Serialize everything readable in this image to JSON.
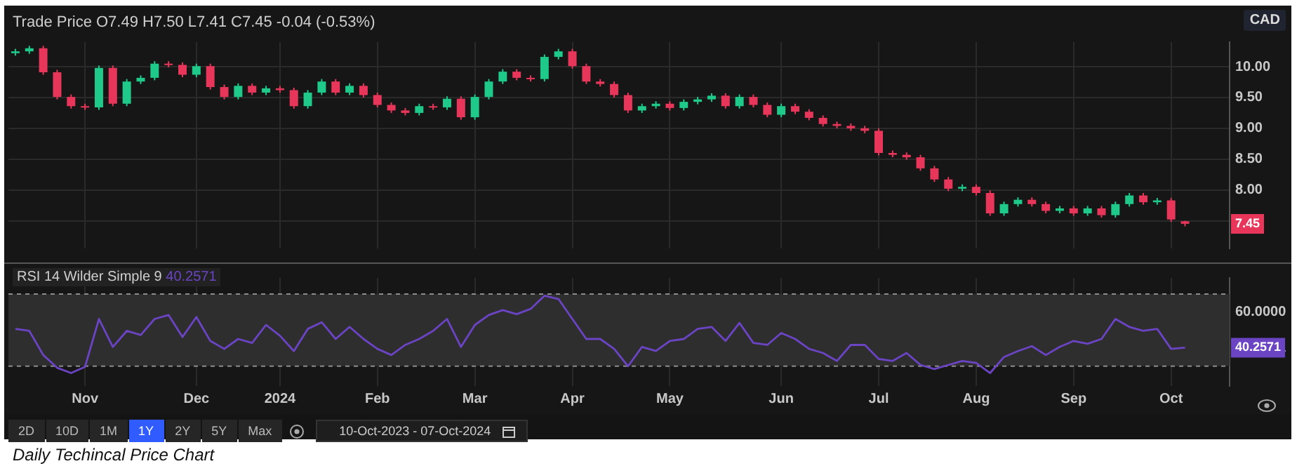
{
  "chart_data": [
    {
      "type": "candlestick",
      "title": "Trade Price  O7.49 H7.50 L7.41 C7.45 -0.04 (-0.53%)",
      "ylabel": "CAD",
      "categories": [
        null,
        null,
        null,
        null,
        null,
        null,
        null,
        null,
        null,
        null,
        null,
        null,
        null,
        null,
        null,
        null,
        null,
        null,
        null,
        null,
        null,
        null,
        null,
        null,
        null,
        null,
        null,
        null,
        null,
        null,
        null,
        null,
        null,
        null,
        null,
        null,
        null,
        null,
        null,
        null,
        null,
        null,
        null,
        null,
        null,
        null,
        null,
        null,
        null,
        null,
        null,
        null,
        null,
        null,
        null,
        null,
        null,
        null,
        null,
        null,
        null,
        null,
        null,
        null,
        null,
        null,
        null,
        null,
        null,
        null,
        null,
        null,
        null,
        null,
        null,
        null,
        null,
        null,
        null,
        null,
        null,
        null,
        null,
        null,
        null
      ],
      "ohlc": [
        [
          10.22,
          10.29,
          10.18,
          10.25
        ],
        [
          10.25,
          10.34,
          10.21,
          10.3
        ],
        [
          10.3,
          10.34,
          9.87,
          9.91
        ],
        [
          9.91,
          9.95,
          9.47,
          9.51
        ],
        [
          9.51,
          9.55,
          9.32,
          9.36
        ],
        [
          9.36,
          9.4,
          9.3,
          9.34
        ],
        [
          9.34,
          10.02,
          9.3,
          9.98
        ],
        [
          9.98,
          10.02,
          9.36,
          9.4
        ],
        [
          9.4,
          9.8,
          9.36,
          9.76
        ],
        [
          9.76,
          9.86,
          9.72,
          9.82
        ],
        [
          9.82,
          10.09,
          9.78,
          10.05
        ],
        [
          10.05,
          10.09,
          9.99,
          10.03
        ],
        [
          10.03,
          10.07,
          9.83,
          9.87
        ],
        [
          9.87,
          10.05,
          9.83,
          10.01
        ],
        [
          10.01,
          10.05,
          9.63,
          9.67
        ],
        [
          9.67,
          9.71,
          9.47,
          9.51
        ],
        [
          9.51,
          9.73,
          9.47,
          9.69
        ],
        [
          9.69,
          9.73,
          9.54,
          9.58
        ],
        [
          9.58,
          9.69,
          9.54,
          9.65
        ],
        [
          9.65,
          9.69,
          9.58,
          9.62
        ],
        [
          9.62,
          9.66,
          9.32,
          9.36
        ],
        [
          9.36,
          9.62,
          9.32,
          9.58
        ],
        [
          9.58,
          9.8,
          9.54,
          9.76
        ],
        [
          9.76,
          9.8,
          9.54,
          9.58
        ],
        [
          9.58,
          9.73,
          9.54,
          9.69
        ],
        [
          9.69,
          9.73,
          9.5,
          9.54
        ],
        [
          9.54,
          9.58,
          9.34,
          9.38
        ],
        [
          9.38,
          9.42,
          9.25,
          9.29
        ],
        [
          9.29,
          9.33,
          9.21,
          9.25
        ],
        [
          9.25,
          9.4,
          9.21,
          9.36
        ],
        [
          9.36,
          9.4,
          9.3,
          9.34
        ],
        [
          9.34,
          9.52,
          9.3,
          9.48
        ],
        [
          9.48,
          9.52,
          9.14,
          9.18
        ],
        [
          9.18,
          9.55,
          9.14,
          9.51
        ],
        [
          9.51,
          9.8,
          9.47,
          9.76
        ],
        [
          9.76,
          9.96,
          9.72,
          9.92
        ],
        [
          9.92,
          9.96,
          9.78,
          9.82
        ],
        [
          9.82,
          9.86,
          9.76,
          9.8
        ],
        [
          9.8,
          10.2,
          9.76,
          10.16
        ],
        [
          10.16,
          10.29,
          10.12,
          10.25
        ],
        [
          10.25,
          10.29,
          9.97,
          10.01
        ],
        [
          10.01,
          10.05,
          9.72,
          9.76
        ],
        [
          9.76,
          9.8,
          9.68,
          9.72
        ],
        [
          9.72,
          9.76,
          9.5,
          9.54
        ],
        [
          9.54,
          9.58,
          9.25,
          9.29
        ],
        [
          9.29,
          9.4,
          9.25,
          9.36
        ],
        [
          9.36,
          9.44,
          9.32,
          9.4
        ],
        [
          9.4,
          9.44,
          9.29,
          9.33
        ],
        [
          9.33,
          9.47,
          9.29,
          9.43
        ],
        [
          9.43,
          9.51,
          9.39,
          9.47
        ],
        [
          9.47,
          9.57,
          9.43,
          9.53
        ],
        [
          9.53,
          9.57,
          9.32,
          9.36
        ],
        [
          9.36,
          9.55,
          9.32,
          9.51
        ],
        [
          9.51,
          9.55,
          9.34,
          9.38
        ],
        [
          9.38,
          9.42,
          9.18,
          9.22
        ],
        [
          9.22,
          9.4,
          9.18,
          9.36
        ],
        [
          9.36,
          9.4,
          9.23,
          9.27
        ],
        [
          9.27,
          9.31,
          9.13,
          9.17
        ],
        [
          9.17,
          9.21,
          9.03,
          9.07
        ],
        [
          9.07,
          9.11,
          9.0,
          9.04
        ],
        [
          9.04,
          9.08,
          8.96,
          9.0
        ],
        [
          9.0,
          9.04,
          8.92,
          8.96
        ],
        [
          8.96,
          9.0,
          8.56,
          8.6
        ],
        [
          8.6,
          8.64,
          8.53,
          8.57
        ],
        [
          8.57,
          8.61,
          8.49,
          8.53
        ],
        [
          8.53,
          8.57,
          8.31,
          8.35
        ],
        [
          8.35,
          8.39,
          8.13,
          8.17
        ],
        [
          8.17,
          8.21,
          7.98,
          8.02
        ],
        [
          8.02,
          8.09,
          7.98,
          8.05
        ],
        [
          8.05,
          8.09,
          7.91,
          7.95
        ],
        [
          7.95,
          7.99,
          7.58,
          7.62
        ],
        [
          7.62,
          7.81,
          7.58,
          7.77
        ],
        [
          7.77,
          7.88,
          7.73,
          7.84
        ],
        [
          7.84,
          7.88,
          7.73,
          7.77
        ],
        [
          7.77,
          7.81,
          7.62,
          7.66
        ],
        [
          7.66,
          7.74,
          7.62,
          7.7
        ],
        [
          7.7,
          7.74,
          7.58,
          7.62
        ],
        [
          7.62,
          7.74,
          7.58,
          7.7
        ],
        [
          7.7,
          7.74,
          7.55,
          7.59
        ],
        [
          7.59,
          7.81,
          7.55,
          7.77
        ],
        [
          7.77,
          7.95,
          7.73,
          7.91
        ],
        [
          7.91,
          7.95,
          7.76,
          7.8
        ],
        [
          7.8,
          7.87,
          7.76,
          7.83
        ],
        [
          7.83,
          7.87,
          7.48,
          7.52
        ],
        [
          7.49,
          7.5,
          7.41,
          7.45
        ]
      ],
      "colors": [
        "#1ec98a",
        "#1ec98a",
        "#e8365a",
        "#e8365a",
        "#e8365a",
        "#e8365a",
        "#1ec98a",
        "#e8365a",
        "#1ec98a",
        "#1ec98a",
        "#1ec98a",
        "#e8365a",
        "#e8365a",
        "#1ec98a",
        "#e8365a",
        "#e8365a",
        "#1ec98a",
        "#e8365a",
        "#1ec98a",
        "#e8365a",
        "#e8365a",
        "#1ec98a",
        "#1ec98a",
        "#e8365a",
        "#1ec98a",
        "#e8365a",
        "#e8365a",
        "#e8365a",
        "#e8365a",
        "#1ec98a",
        "#e8365a",
        "#1ec98a",
        "#e8365a",
        "#1ec98a",
        "#1ec98a",
        "#1ec98a",
        "#e8365a",
        "#e8365a",
        "#1ec98a",
        "#1ec98a",
        "#e8365a",
        "#e8365a",
        "#e8365a",
        "#e8365a",
        "#e8365a",
        "#1ec98a",
        "#1ec98a",
        "#e8365a",
        "#1ec98a",
        "#1ec98a",
        "#1ec98a",
        "#e8365a",
        "#1ec98a",
        "#e8365a",
        "#e8365a",
        "#1ec98a",
        "#e8365a",
        "#e8365a",
        "#e8365a",
        "#e8365a",
        "#e8365a",
        "#e8365a",
        "#e8365a",
        "#e8365a",
        "#e8365a",
        "#e8365a",
        "#e8365a",
        "#e8365a",
        "#1ec98a",
        "#e8365a",
        "#e8365a",
        "#1ec98a",
        "#1ec98a",
        "#e8365a",
        "#e8365a",
        "#1ec98a",
        "#e8365a",
        "#1ec98a",
        "#e8365a",
        "#1ec98a",
        "#1ec98a",
        "#e8365a",
        "#1ec98a",
        "#e8365a",
        "#e8365a"
      ],
      "ylim": [
        7.05,
        10.4
      ],
      "yticks": [
        {
          "value": 10,
          "label": "10.00"
        },
        {
          "value": 9.5,
          "label": "9.50"
        },
        {
          "value": 9,
          "label": "9.00"
        },
        {
          "value": 8.5,
          "label": "8.50"
        },
        {
          "value": 8,
          "label": "8.00"
        },
        {
          "value": 7.5,
          "label": null
        }
      ],
      "grid": true,
      "tick_labels": "y",
      "annotations": [
        "7.45"
      ]
    },
    {
      "type": "line",
      "title": "RSI 14 Wilder Simple 9",
      "subtitle": "40.2571",
      "categories": [
        null,
        null,
        null,
        null,
        null,
        "Nov",
        null,
        null,
        null,
        null,
        null,
        null,
        null,
        "Dec",
        null,
        null,
        null,
        null,
        null,
        "2024",
        null,
        null,
        null,
        null,
        null,
        null,
        "Feb",
        null,
        null,
        null,
        null,
        null,
        null,
        "Mar",
        null,
        null,
        null,
        null,
        null,
        null,
        "Apr",
        null,
        null,
        null,
        null,
        null,
        null,
        "May",
        null,
        null,
        null,
        null,
        null,
        null,
        null,
        "Jun",
        null,
        null,
        null,
        null,
        null,
        null,
        "Jul",
        null,
        null,
        null,
        null,
        null,
        null,
        "Aug",
        null,
        null,
        null,
        null,
        null,
        null,
        "Sep",
        null,
        null,
        null,
        null,
        null,
        null,
        "Oct",
        null
      ],
      "series": [
        {
          "color": "#6b44c4",
          "values": [
            50.7,
            49.6,
            36.2,
            29.1,
            26.2,
            29.6,
            56.2,
            40.7,
            49.6,
            47.3,
            56.2,
            58.4,
            46.2,
            57.3,
            44.0,
            39.6,
            45.1,
            42.9,
            52.9,
            46.9,
            38.4,
            50.7,
            54.4,
            45.1,
            51.8,
            45.1,
            39.6,
            36.2,
            41.8,
            45.1,
            49.6,
            56.2,
            40.7,
            52.9,
            58.4,
            61.1,
            58.9,
            61.8,
            69.1,
            67.3,
            56.2,
            45.1,
            45.1,
            39.6,
            30.0,
            40.7,
            38.4,
            44.0,
            45.1,
            50.7,
            51.8,
            44.0,
            54.0,
            42.9,
            41.8,
            48.4,
            45.1,
            39.6,
            37.3,
            32.9,
            41.8,
            41.8,
            34.0,
            32.9,
            37.3,
            30.7,
            28.4,
            30.7,
            32.9,
            31.8,
            26.2,
            35.1,
            38.4,
            41.1,
            36.2,
            40.7,
            44.0,
            42.4,
            45.1,
            56.2,
            51.8,
            49.6,
            50.7,
            39.6,
            40.2571
          ]
        }
      ],
      "ylim": [
        19,
        79
      ],
      "yticks": [
        {
          "value": 60,
          "label": "60.0000"
        },
        {
          "value": 40.2571,
          "label": "40.2571"
        }
      ],
      "grid": true,
      "marker": "none",
      "bands": [
        {
          "axis": "y",
          "from": 30,
          "to": 70,
          "color": "#2e2e2e"
        }
      ],
      "ref_lines": [
        {
          "axis": "y",
          "value": 70,
          "color": "#8c8c8c",
          "line_style": "dashed"
        },
        {
          "axis": "y",
          "value": 30,
          "color": "#8c8c8c",
          "line_style": "dashed"
        }
      ]
    },
    {
      "type": "other",
      "annotations": [
        "2D",
        "10D",
        "1M",
        "1Y",
        "2Y",
        "5Y",
        "Max",
        "10-Oct-2023 - 07-Oct-2024",
        "Daily Techincal Price Chart"
      ]
    }
  ]
}
